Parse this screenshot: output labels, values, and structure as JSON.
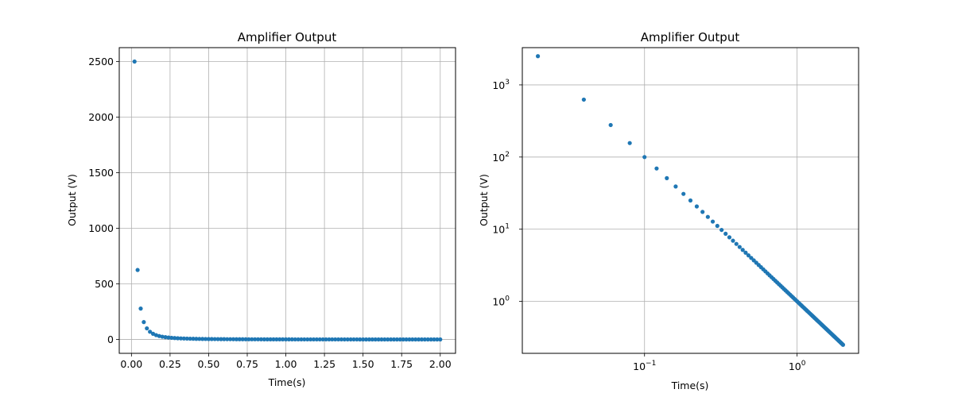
{
  "colors": {
    "series": "#1f77b4",
    "grid": "#b0b0b0",
    "frame": "#000000"
  },
  "chart_data": [
    {
      "type": "scatter",
      "title": "Amplifier Output",
      "xlabel": "Time(s)",
      "ylabel": "Output (V)",
      "xscale": "linear",
      "yscale": "linear",
      "grid": true,
      "xlim": [
        -0.079,
        2.099
      ],
      "ylim": [
        -124.7,
        2625
      ],
      "xticks": [
        {
          "value": 0.0,
          "label": "0.00"
        },
        {
          "value": 0.25,
          "label": "0.25"
        },
        {
          "value": 0.5,
          "label": "0.50"
        },
        {
          "value": 0.75,
          "label": "0.75"
        },
        {
          "value": 1.0,
          "label": "1.00"
        },
        {
          "value": 1.25,
          "label": "1.25"
        },
        {
          "value": 1.5,
          "label": "1.50"
        },
        {
          "value": 1.75,
          "label": "1.75"
        },
        {
          "value": 2.0,
          "label": "2.00"
        }
      ],
      "yticks": [
        {
          "value": 0,
          "label": "0"
        },
        {
          "value": 500,
          "label": "500"
        },
        {
          "value": 1000,
          "label": "1000"
        },
        {
          "value": 1500,
          "label": "1500"
        },
        {
          "value": 2000,
          "label": "2000"
        },
        {
          "value": 2500,
          "label": "2500"
        }
      ],
      "series": [
        {
          "x_start": 0.02,
          "x_step": 0.02,
          "count": 100,
          "formula": "y = 1 / x^2",
          "marker": "circle"
        }
      ]
    },
    {
      "type": "scatter",
      "title": "Amplifier Output",
      "xlabel": "Time(s)",
      "ylabel": "Output (V)",
      "xscale": "log",
      "yscale": "log",
      "grid": true,
      "xlim": [
        0.01581,
        2.5298
      ],
      "ylim": [
        0.1903,
        3284
      ],
      "xticks": [
        {
          "value": 0.1,
          "label": "10",
          "exponent": "−1"
        },
        {
          "value": 1,
          "label": "10",
          "exponent": "0"
        }
      ],
      "yticks": [
        {
          "value": 1,
          "label": "10",
          "exponent": "0"
        },
        {
          "value": 10,
          "label": "10",
          "exponent": "1"
        },
        {
          "value": 100,
          "label": "10",
          "exponent": "2"
        },
        {
          "value": 1000,
          "label": "10",
          "exponent": "3"
        }
      ],
      "series": [
        {
          "x_start": 0.02,
          "x_step": 0.02,
          "count": 100,
          "formula": "y = 1 / x^2",
          "marker": "circle"
        }
      ]
    }
  ]
}
